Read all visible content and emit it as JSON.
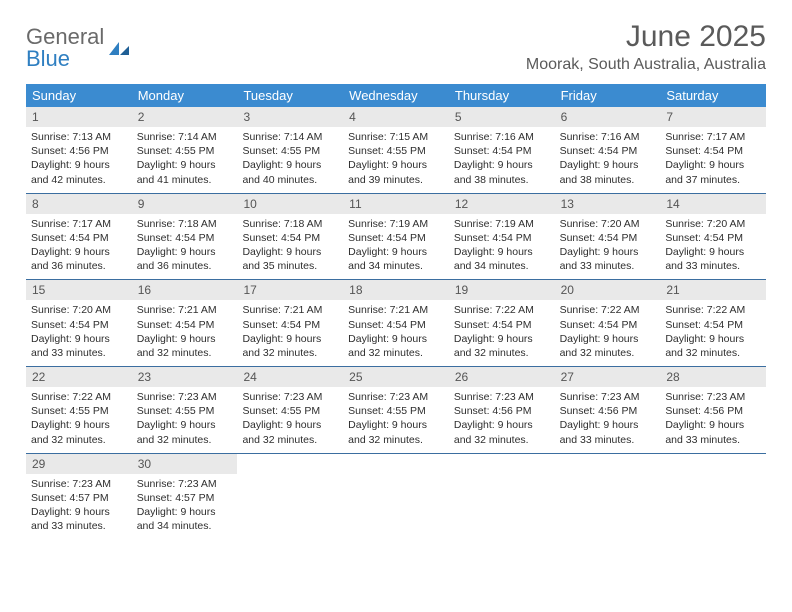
{
  "brand": {
    "word1": "General",
    "word2": "Blue"
  },
  "title": "June 2025",
  "subtitle": "Moorak, South Australia, Australia",
  "colors": {
    "header_bg": "#3b8bd0",
    "header_text": "#ffffff",
    "daynum_bg": "#e9e9e9",
    "daynum_text": "#555555",
    "week_border": "#3b6ea0",
    "title_color": "#5a5a5a",
    "body_text": "#2e2e2e",
    "brand_gray": "#6a6a6a",
    "brand_blue": "#2f7fc1"
  },
  "weekdays": [
    "Sunday",
    "Monday",
    "Tuesday",
    "Wednesday",
    "Thursday",
    "Friday",
    "Saturday"
  ],
  "first_weekday_index": 0,
  "days": [
    {
      "n": 1,
      "sunrise": "7:13 AM",
      "sunset": "4:56 PM",
      "daylight": "9 hours and 42 minutes."
    },
    {
      "n": 2,
      "sunrise": "7:14 AM",
      "sunset": "4:55 PM",
      "daylight": "9 hours and 41 minutes."
    },
    {
      "n": 3,
      "sunrise": "7:14 AM",
      "sunset": "4:55 PM",
      "daylight": "9 hours and 40 minutes."
    },
    {
      "n": 4,
      "sunrise": "7:15 AM",
      "sunset": "4:55 PM",
      "daylight": "9 hours and 39 minutes."
    },
    {
      "n": 5,
      "sunrise": "7:16 AM",
      "sunset": "4:54 PM",
      "daylight": "9 hours and 38 minutes."
    },
    {
      "n": 6,
      "sunrise": "7:16 AM",
      "sunset": "4:54 PM",
      "daylight": "9 hours and 38 minutes."
    },
    {
      "n": 7,
      "sunrise": "7:17 AM",
      "sunset": "4:54 PM",
      "daylight": "9 hours and 37 minutes."
    },
    {
      "n": 8,
      "sunrise": "7:17 AM",
      "sunset": "4:54 PM",
      "daylight": "9 hours and 36 minutes."
    },
    {
      "n": 9,
      "sunrise": "7:18 AM",
      "sunset": "4:54 PM",
      "daylight": "9 hours and 36 minutes."
    },
    {
      "n": 10,
      "sunrise": "7:18 AM",
      "sunset": "4:54 PM",
      "daylight": "9 hours and 35 minutes."
    },
    {
      "n": 11,
      "sunrise": "7:19 AM",
      "sunset": "4:54 PM",
      "daylight": "9 hours and 34 minutes."
    },
    {
      "n": 12,
      "sunrise": "7:19 AM",
      "sunset": "4:54 PM",
      "daylight": "9 hours and 34 minutes."
    },
    {
      "n": 13,
      "sunrise": "7:20 AM",
      "sunset": "4:54 PM",
      "daylight": "9 hours and 33 minutes."
    },
    {
      "n": 14,
      "sunrise": "7:20 AM",
      "sunset": "4:54 PM",
      "daylight": "9 hours and 33 minutes."
    },
    {
      "n": 15,
      "sunrise": "7:20 AM",
      "sunset": "4:54 PM",
      "daylight": "9 hours and 33 minutes."
    },
    {
      "n": 16,
      "sunrise": "7:21 AM",
      "sunset": "4:54 PM",
      "daylight": "9 hours and 32 minutes."
    },
    {
      "n": 17,
      "sunrise": "7:21 AM",
      "sunset": "4:54 PM",
      "daylight": "9 hours and 32 minutes."
    },
    {
      "n": 18,
      "sunrise": "7:21 AM",
      "sunset": "4:54 PM",
      "daylight": "9 hours and 32 minutes."
    },
    {
      "n": 19,
      "sunrise": "7:22 AM",
      "sunset": "4:54 PM",
      "daylight": "9 hours and 32 minutes."
    },
    {
      "n": 20,
      "sunrise": "7:22 AM",
      "sunset": "4:54 PM",
      "daylight": "9 hours and 32 minutes."
    },
    {
      "n": 21,
      "sunrise": "7:22 AM",
      "sunset": "4:54 PM",
      "daylight": "9 hours and 32 minutes."
    },
    {
      "n": 22,
      "sunrise": "7:22 AM",
      "sunset": "4:55 PM",
      "daylight": "9 hours and 32 minutes."
    },
    {
      "n": 23,
      "sunrise": "7:23 AM",
      "sunset": "4:55 PM",
      "daylight": "9 hours and 32 minutes."
    },
    {
      "n": 24,
      "sunrise": "7:23 AM",
      "sunset": "4:55 PM",
      "daylight": "9 hours and 32 minutes."
    },
    {
      "n": 25,
      "sunrise": "7:23 AM",
      "sunset": "4:55 PM",
      "daylight": "9 hours and 32 minutes."
    },
    {
      "n": 26,
      "sunrise": "7:23 AM",
      "sunset": "4:56 PM",
      "daylight": "9 hours and 32 minutes."
    },
    {
      "n": 27,
      "sunrise": "7:23 AM",
      "sunset": "4:56 PM",
      "daylight": "9 hours and 33 minutes."
    },
    {
      "n": 28,
      "sunrise": "7:23 AM",
      "sunset": "4:56 PM",
      "daylight": "9 hours and 33 minutes."
    },
    {
      "n": 29,
      "sunrise": "7:23 AM",
      "sunset": "4:57 PM",
      "daylight": "9 hours and 33 minutes."
    },
    {
      "n": 30,
      "sunrise": "7:23 AM",
      "sunset": "4:57 PM",
      "daylight": "9 hours and 34 minutes."
    }
  ],
  "labels": {
    "sunrise": "Sunrise:",
    "sunset": "Sunset:",
    "daylight": "Daylight:"
  }
}
